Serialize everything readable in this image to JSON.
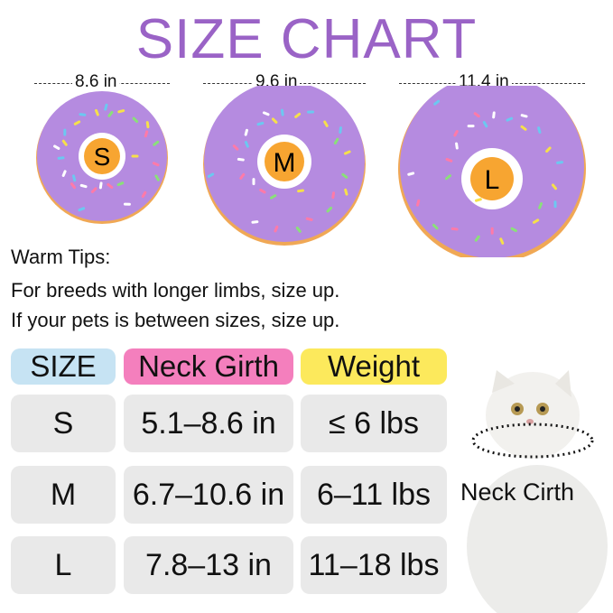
{
  "title": "SIZE CHART",
  "diameters": [
    {
      "size": "S",
      "width": "8.6 in"
    },
    {
      "size": "M",
      "width": "9.6 in"
    },
    {
      "size": "L",
      "width": "11.4 in"
    }
  ],
  "colors": {
    "title": "#9a63c6",
    "donut": "#b58be0",
    "badge": "#f7a531",
    "size_header": "#c6e3f3",
    "girth_header": "#f47fbd",
    "weight_header": "#fce95c",
    "cell": "#e9e9e9"
  },
  "tips": {
    "heading": "Warm Tips:",
    "lines": [
      "For breeds with longer limbs, size up.",
      "If your pets is between sizes, size up."
    ]
  },
  "table": {
    "headers": [
      "SIZE",
      "Neck Girth",
      "Weight"
    ],
    "rows": [
      [
        "S",
        "5.1–8.6 in",
        "≤ 6 lbs"
      ],
      [
        "M",
        "6.7–10.6 in",
        "6–11 lbs"
      ],
      [
        "L",
        "7.8–13 in",
        "11–18 lbs"
      ]
    ]
  },
  "cat_label": "Neck Cirth"
}
